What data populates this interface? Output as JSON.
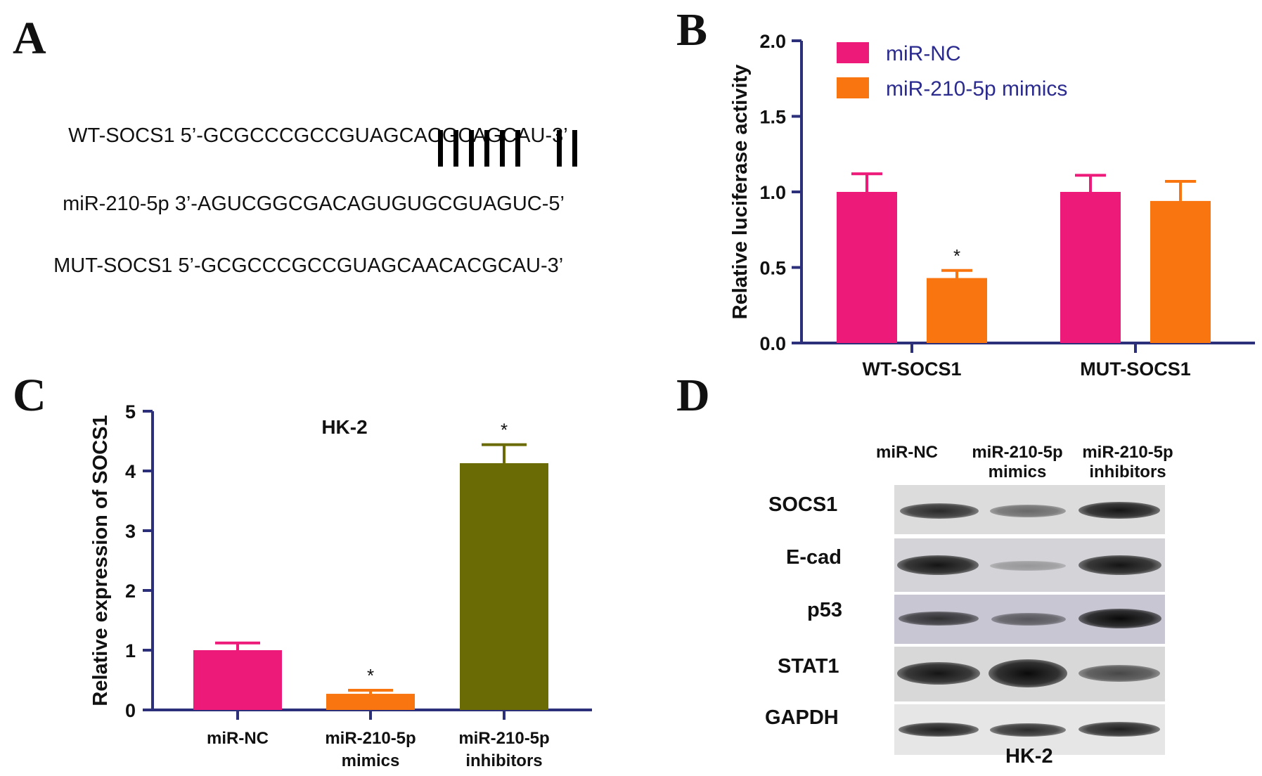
{
  "panels": {
    "a": "A",
    "b": "B",
    "c": "C",
    "d": "D"
  },
  "sequences": {
    "wt": {
      "label": "WT-SOCS1",
      "seq": "5’-GCGCCCGCCGUAGCACGCAGCAU-3’"
    },
    "mir": {
      "label": "miR-210-5p",
      "seq": "3’-AGUCGGCGACAGUGUGCGUAGUC-5’"
    },
    "mut": {
      "label": "MUT-SOCS1",
      "seq": "5’-GCGCCCGCCGUAGCAACACGCAU-3’"
    }
  },
  "chart_data": [
    {
      "panel": "B",
      "type": "bar",
      "categories": [
        "WT-SOCS1",
        "MUT-SOCS1"
      ],
      "series": [
        {
          "name": "miR-NC",
          "color": "#ee1a7a",
          "values": [
            1.0,
            1.0
          ],
          "errors": [
            0.12,
            0.11
          ],
          "sig": [
            "",
            ""
          ]
        },
        {
          "name": "miR-210-5p mimics",
          "color": "#f87510",
          "values": [
            0.43,
            0.94
          ],
          "errors": [
            0.05,
            0.13
          ],
          "sig": [
            "*",
            ""
          ]
        }
      ],
      "ylabel": "Relative luciferase activity",
      "ylim": [
        0,
        2.0
      ],
      "yticks": [
        "0.0",
        "0.5",
        "1.0",
        "1.5",
        "2.0"
      ],
      "legend": "top-left"
    },
    {
      "panel": "C",
      "type": "bar",
      "title": "HK-2",
      "categories": [
        [
          "miR-NC"
        ],
        [
          "miR-210-5p",
          "mimics"
        ],
        [
          "miR-210-5p",
          "inhibitors"
        ]
      ],
      "values": [
        1.0,
        0.27,
        4.13
      ],
      "errors": [
        0.12,
        0.06,
        0.31
      ],
      "colors": [
        "#ee1a7a",
        "#f87510",
        "#6b6b06"
      ],
      "sig": [
        "",
        "*",
        "*"
      ],
      "ylabel": "Relative expression of SOCS1",
      "ylim": [
        0,
        5
      ],
      "yticks": [
        "0",
        "1",
        "2",
        "3",
        "4",
        "5"
      ]
    }
  ],
  "western_blot": {
    "lanes": [
      [
        "miR-NC"
      ],
      [
        "miR-210-5p",
        "mimics"
      ],
      [
        "miR-210-5p",
        "inhibitors"
      ]
    ],
    "rows": [
      {
        "label": "SOCS1",
        "intensity": [
          0.85,
          0.55,
          0.95
        ]
      },
      {
        "label": "E-cad",
        "intensity": [
          0.95,
          0.3,
          0.95
        ]
      },
      {
        "label": "p53",
        "intensity": [
          0.8,
          0.6,
          1.0
        ]
      },
      {
        "label": "STAT1",
        "intensity": [
          0.95,
          1.0,
          0.7
        ]
      },
      {
        "label": "GAPDH",
        "intensity": [
          0.9,
          0.85,
          0.9
        ]
      }
    ],
    "footer": "HK-2"
  }
}
